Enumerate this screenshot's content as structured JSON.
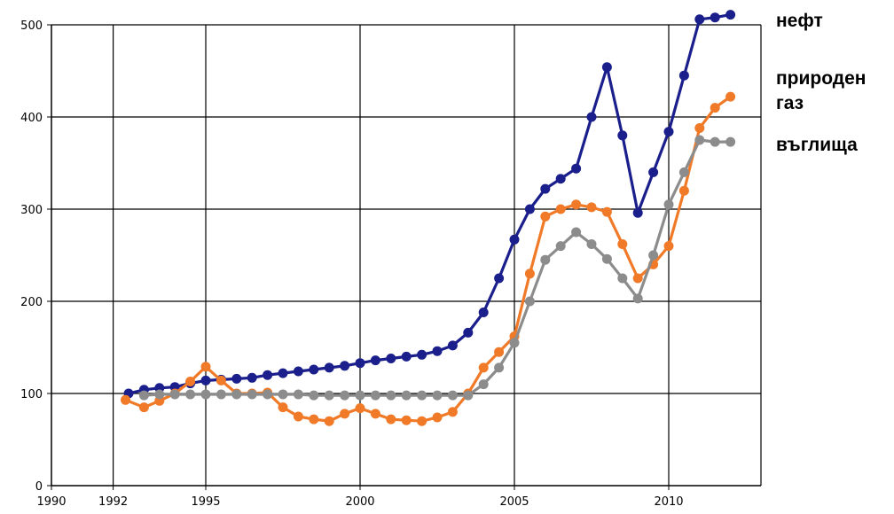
{
  "chart_data": {
    "type": "line",
    "xlim": [
      1990,
      2013
    ],
    "ylim": [
      0,
      500
    ],
    "grid": true,
    "legend_placement": "right",
    "x_ticks": [
      {
        "value": 1990,
        "label": "1990"
      },
      {
        "value": 1992,
        "label": "1992"
      },
      {
        "value": 1995,
        "label": "1995"
      },
      {
        "value": 2000,
        "label": "2000"
      },
      {
        "value": 2005,
        "label": "2005"
      },
      {
        "value": 2010,
        "label": "2010"
      }
    ],
    "y_ticks": [
      {
        "value": 0,
        "label": "0"
      },
      {
        "value": 100,
        "label": "100"
      },
      {
        "value": 200,
        "label": "200"
      },
      {
        "value": 300,
        "label": "300"
      },
      {
        "value": 400,
        "label": "400"
      },
      {
        "value": 500,
        "label": "500"
      }
    ],
    "series": [
      {
        "name": "нефт",
        "legend_lines": [
          "нефт"
        ],
        "color": "#1a1f8c",
        "x": [
          1992.5,
          1993,
          1993.5,
          1994,
          1994.5,
          1995,
          1995.5,
          1996,
          1996.5,
          1997,
          1997.5,
          1998,
          1998.5,
          1999,
          1999.5,
          2000,
          2000.5,
          2001,
          2001.5,
          2002,
          2002.5,
          2003,
          2003.5,
          2004,
          2004.5,
          2005,
          2005.5,
          2006,
          2006.5,
          2007,
          2007.5,
          2008,
          2008.5,
          2009,
          2009.5,
          2010,
          2010.5,
          2011,
          2011.5,
          2012
        ],
        "y": [
          100,
          104,
          106,
          107,
          111,
          114,
          115,
          116,
          117,
          120,
          122,
          124,
          126,
          128,
          130,
          133,
          136,
          138,
          140,
          142,
          146,
          152,
          166,
          188,
          225,
          267,
          300,
          322,
          333,
          344,
          400,
          454,
          380,
          296,
          340,
          384,
          445,
          506,
          508,
          511
        ]
      },
      {
        "name": "природен газ",
        "legend_lines": [
          "природен",
          "газ"
        ],
        "color": "#f07a28",
        "x": [
          1992.4,
          1993,
          1993.5,
          1994,
          1994.5,
          1995,
          1995.5,
          1996,
          1996.5,
          1997,
          1997.5,
          1998,
          1998.5,
          1999,
          1999.5,
          2000,
          2000.5,
          2001,
          2001.5,
          2002,
          2002.5,
          2003,
          2003.5,
          2004,
          2004.5,
          2005,
          2005.5,
          2006,
          2006.5,
          2007,
          2007.5,
          2008,
          2008.5,
          2009,
          2009.5,
          2010,
          2010.5,
          2011,
          2011.5,
          2012
        ],
        "y": [
          93,
          85,
          92,
          100,
          113,
          129,
          114,
          100,
          100,
          101,
          85,
          75,
          72,
          70,
          78,
          84,
          78,
          72,
          71,
          70,
          74,
          80,
          100,
          128,
          145,
          162,
          230,
          292,
          300,
          305,
          302,
          297,
          262,
          225,
          240,
          260,
          320,
          388,
          410,
          422
        ]
      },
      {
        "name": "въглища",
        "legend_lines": [
          "въглища"
        ],
        "color": "#8c8c8c",
        "x": [
          1993,
          1993.5,
          1994,
          1994.5,
          1995,
          1995.5,
          1996,
          1996.5,
          1997,
          1997.5,
          1998,
          1998.5,
          1999,
          1999.5,
          2000,
          2000.5,
          2001,
          2001.5,
          2002,
          2002.5,
          2003,
          2003.5,
          2004,
          2004.5,
          2005,
          2005.5,
          2006,
          2006.5,
          2007,
          2007.5,
          2008,
          2008.5,
          2009,
          2009.5,
          2010,
          2010.5,
          2011,
          2011.5,
          2012
        ],
        "y": [
          98,
          99,
          99,
          99,
          99,
          99,
          99,
          99,
          99,
          99,
          99,
          98,
          98,
          98,
          98,
          98,
          98,
          98,
          98,
          98,
          98,
          98,
          110,
          128,
          155,
          200,
          245,
          260,
          275,
          262,
          246,
          225,
          203,
          250,
          305,
          340,
          375,
          373,
          373
        ]
      }
    ]
  }
}
